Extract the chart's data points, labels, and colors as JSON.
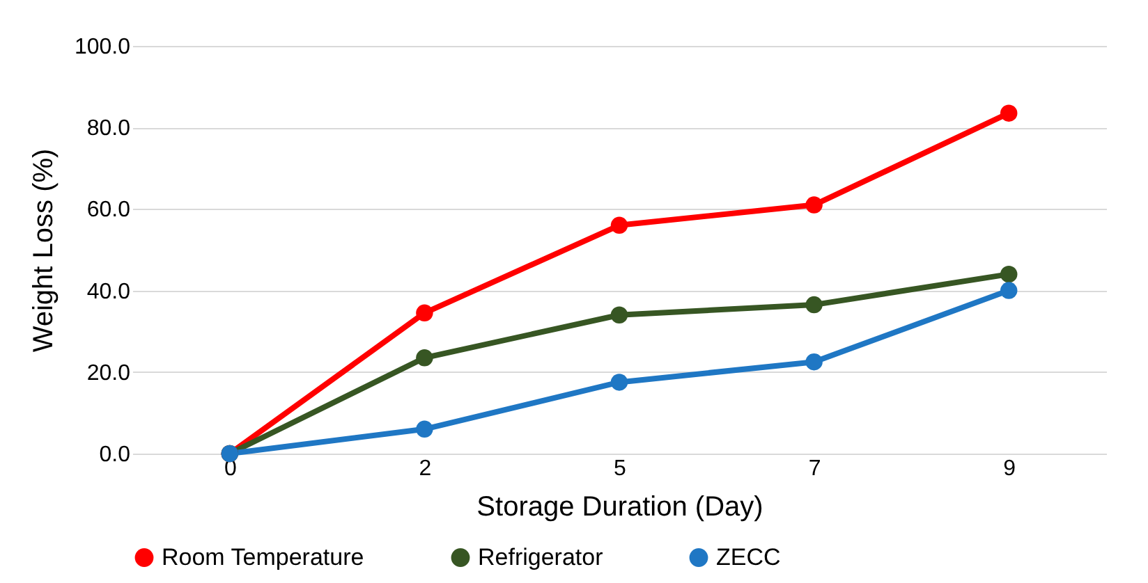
{
  "chart_data": {
    "type": "line",
    "xlabel": "Storage Duration (Day)",
    "ylabel": "Weight Loss (%)",
    "categories": [
      "0",
      "2",
      "5",
      "7",
      "9"
    ],
    "series": [
      {
        "name": "Room Temperature",
        "color": "#ff0000",
        "values": [
          0.0,
          34.5,
          56.0,
          61.0,
          83.5
        ]
      },
      {
        "name": "Refrigerator",
        "color": "#375623",
        "values": [
          0.0,
          23.5,
          34.0,
          36.5,
          44.0
        ]
      },
      {
        "name": "ZECC",
        "color": "#1f77c4",
        "values": [
          0.0,
          6.0,
          17.5,
          22.5,
          40.0
        ]
      }
    ],
    "ylim": [
      0,
      100
    ],
    "yticks": [
      {
        "value": 0,
        "label": "0.0"
      },
      {
        "value": 20,
        "label": "20.0"
      },
      {
        "value": 40,
        "label": "40.0"
      },
      {
        "value": 60,
        "label": "60.0"
      },
      {
        "value": 80,
        "label": "80.0"
      },
      {
        "value": 100,
        "label": "100.0"
      }
    ],
    "grid": "y",
    "legend": "bottom",
    "marker": "circle",
    "line_style": "solid"
  }
}
